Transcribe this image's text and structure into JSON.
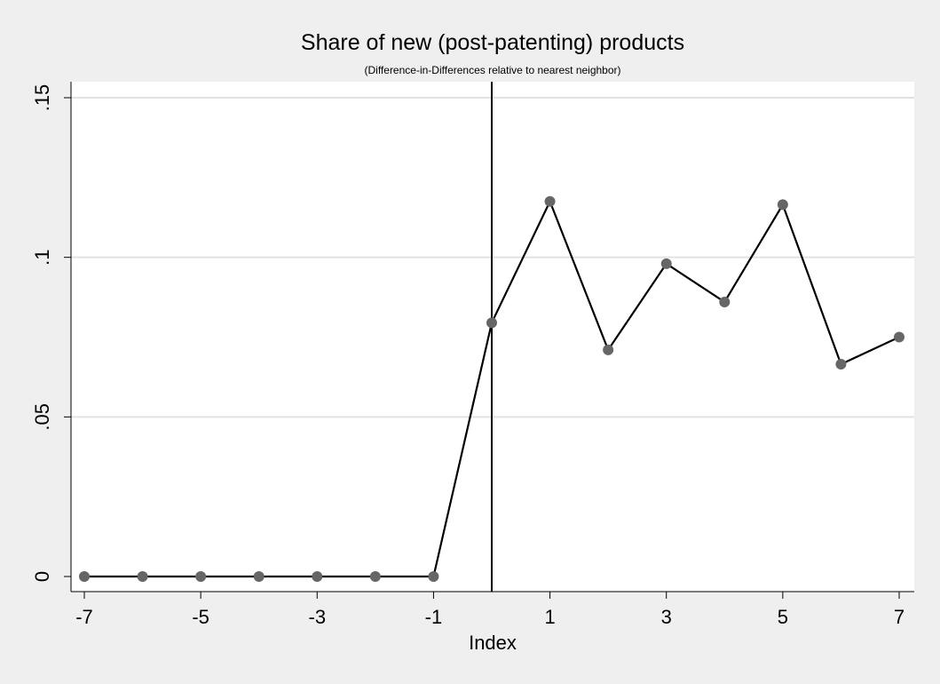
{
  "chart_data": {
    "type": "line",
    "title": "Share of new (post-patenting) products",
    "subtitle": "(Difference-in-Differences relative to nearest neighbor)",
    "xlabel": "Index",
    "ylabel": "",
    "xlim": [
      -7,
      7
    ],
    "ylim": [
      0,
      0.15
    ],
    "x_ticks": [
      -7,
      -5,
      -3,
      -1,
      1,
      3,
      5,
      7
    ],
    "x_tick_labels": [
      "-7",
      "-5",
      "-3",
      "-1",
      "1",
      "3",
      "5",
      "7"
    ],
    "y_ticks": [
      0,
      0.05,
      0.1,
      0.15
    ],
    "y_tick_labels": [
      "0",
      ".05",
      ".1",
      ".15"
    ],
    "grid": "horizontal",
    "reference_line_x": 0,
    "series": [
      {
        "x": [
          -7,
          -6,
          -5,
          -4,
          -3,
          -2,
          -1,
          0,
          1,
          2,
          3,
          4,
          5,
          6,
          7
        ],
        "values": [
          0,
          0,
          0,
          0,
          0,
          0,
          0,
          0.0795,
          0.1175,
          0.071,
          0.098,
          0.086,
          0.1165,
          0.0665,
          0.075
        ]
      }
    ],
    "colors": {
      "line": "#000000",
      "marker": "#666666",
      "grid": "#e2e2e2",
      "plot_background": "#ffffff",
      "page_background": "#efefef"
    }
  }
}
